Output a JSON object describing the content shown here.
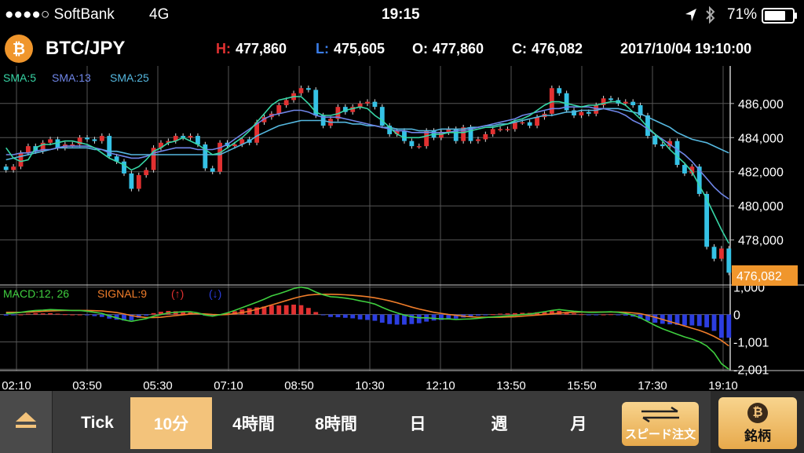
{
  "status_bar": {
    "carrier": "●●●●○ SoftBank",
    "network": "4G",
    "time": "19:15",
    "battery": "71%"
  },
  "header": {
    "logo_symbol": "₿",
    "pair": "BTC/JPY",
    "high_key": "H:",
    "high": "477,860",
    "low_key": "L:",
    "low": "475,605",
    "open_key": "O:",
    "open": "477,860",
    "close_key": "C:",
    "close": "476,082",
    "datetime": "2017/10/04 19:10:00"
  },
  "chart_data": {
    "type": "candlestick",
    "title": "BTC/JPY",
    "sma_labels": [
      "SMA:5",
      "SMA:13",
      "SMA:25"
    ],
    "macd_label": "MACD:12, 26",
    "signal_label": "SIGNAL:9",
    "up_arrow_label": "(↑)",
    "down_arrow_label": "(↓)",
    "price_ticks": [
      "486,000",
      "484,000",
      "482,000",
      "480,000",
      "478,000"
    ],
    "price_tick_values": [
      486000,
      484000,
      482000,
      480000,
      478000
    ],
    "price_range": [
      475500,
      488200
    ],
    "current_price_label": "476,082",
    "current_price": 476082,
    "macd_ticks": [
      "1,000",
      "0",
      "-1,001",
      "-2,001"
    ],
    "macd_tick_values": [
      1000,
      0,
      -1001,
      -2001
    ],
    "macd_range": [
      -2050,
      1050
    ],
    "x_labels": [
      "02:10",
      "03:50",
      "05:30",
      "07:10",
      "08:50",
      "10:30",
      "12:10",
      "13:50",
      "15:50",
      "17:30",
      "19:10"
    ],
    "closes": [
      482100,
      482300,
      483100,
      483500,
      483200,
      483700,
      483900,
      483400,
      483600,
      483600,
      484000,
      483900,
      483800,
      484100,
      482900,
      482600,
      481900,
      481000,
      481800,
      482100,
      483400,
      483700,
      483800,
      484100,
      484000,
      484100,
      483600,
      482200,
      482000,
      483700,
      483500,
      483600,
      483900,
      483700,
      484900,
      485200,
      485400,
      485900,
      486200,
      486600,
      486900,
      486800,
      485300,
      484700,
      485100,
      485800,
      485500,
      485800,
      486000,
      486100,
      485800,
      484700,
      484200,
      484400,
      483800,
      483500,
      483500,
      484400,
      484000,
      484300,
      484500,
      483800,
      484600,
      483800,
      483900,
      484200,
      484500,
      484500,
      484500,
      484900,
      484900,
      484700,
      485200,
      485400,
      486900,
      486600,
      485600,
      485300,
      485500,
      485400,
      485900,
      486300,
      486200,
      486000,
      486100,
      485900,
      485300,
      484100,
      483600,
      483500,
      483800,
      482400,
      481900,
      482300,
      480700,
      477600,
      476900,
      477500,
      476082
    ],
    "sma5": [
      483400,
      482800,
      482600,
      482700,
      483400,
      483600,
      483600,
      483700,
      483800,
      483800,
      483700,
      483600,
      483400,
      483100,
      482800,
      482600,
      482400,
      482100,
      482300,
      482700,
      483200,
      483400,
      483700,
      483800,
      484000,
      483800,
      483600,
      483300,
      483000,
      483100,
      483400,
      483700,
      484000,
      484400,
      484900,
      485400,
      485900,
      486200,
      486300,
      486400,
      486400,
      486000,
      485500,
      485300,
      485300,
      485400,
      485600,
      485700,
      485800,
      485700,
      485300,
      485000,
      484600,
      484200,
      484000,
      484000,
      484000,
      484100,
      484200,
      484200,
      484300,
      484300,
      484300,
      484400,
      484500,
      484600,
      484600,
      484700,
      484800,
      485000,
      485100,
      485300,
      485600,
      485900,
      486100,
      486100,
      486000,
      485900,
      485800,
      485900,
      485900,
      486000,
      486100,
      486100,
      485900,
      485500,
      485100,
      484600,
      484200,
      483800,
      483300,
      482900,
      482500,
      482000,
      481200,
      480400,
      479500,
      478600,
      477800
    ],
    "sma13": [
      483000,
      483000,
      483100,
      483100,
      483200,
      483300,
      483300,
      483400,
      483500,
      483500,
      483500,
      483500,
      483400,
      483300,
      483100,
      483000,
      482900,
      482800,
      482800,
      482900,
      483100,
      483200,
      483300,
      483400,
      483400,
      483400,
      483300,
      483300,
      483300,
      483400,
      483600,
      483900,
      484200,
      484500,
      484800,
      485100,
      485300,
      485400,
      485500,
      485600,
      485600,
      485500,
      485300,
      485200,
      485200,
      485200,
      485100,
      485000,
      484900,
      484800,
      484700,
      484600,
      484500,
      484400,
      484400,
      484300,
      484300,
      484300,
      484300,
      484300,
      484300,
      484400,
      484400,
      484500,
      484600,
      484700,
      484800,
      484900,
      485000,
      485100,
      485300,
      485400,
      485500,
      485600,
      485700,
      485700,
      485800,
      485800,
      485800,
      485800,
      485700,
      485700,
      485600,
      485500,
      485300,
      485000,
      484800,
      484500,
      484200,
      483900,
      483600,
      483300,
      483000,
      482600,
      482100,
      481600,
      481100,
      480700,
      480400
    ],
    "sma25": [
      482700,
      482800,
      482900,
      483000,
      483100,
      483200,
      483300,
      483400,
      483400,
      483400,
      483400,
      483400,
      483300,
      483300,
      483200,
      483200,
      483100,
      483000,
      483000,
      483000,
      483000,
      483000,
      483000,
      483000,
      483000,
      483000,
      483000,
      483000,
      483000,
      483000,
      483200,
      483400,
      483600,
      483800,
      484100,
      484300,
      484500,
      484700,
      484800,
      484900,
      485000,
      485000,
      485000,
      485000,
      484900,
      484900,
      484900,
      484800,
      484800,
      484700,
      484700,
      484600,
      484600,
      484500,
      484500,
      484500,
      484400,
      484400,
      484400,
      484500,
      484500,
      484500,
      484500,
      484600,
      484600,
      484700,
      484700,
      484800,
      484800,
      484900,
      485000,
      485100,
      485200,
      485300,
      485300,
      485400,
      485500,
      485500,
      485600,
      485600,
      485600,
      485700,
      485700,
      485700,
      485600,
      485500,
      485400,
      485200,
      485000,
      484800,
      484600,
      484300,
      484100,
      483900,
      483800,
      483700,
      483500,
      483300,
      483100
    ],
    "macd": [
      40,
      50,
      80,
      120,
      150,
      160,
      180,
      170,
      160,
      150,
      150,
      120,
      80,
      40,
      -50,
      -120,
      -200,
      -250,
      -200,
      -150,
      -60,
      0,
      60,
      80,
      100,
      100,
      60,
      -20,
      -60,
      -10,
      60,
      150,
      250,
      350,
      450,
      560,
      680,
      760,
      850,
      950,
      1000,
      950,
      820,
      720,
      650,
      630,
      600,
      560,
      500,
      450,
      380,
      260,
      150,
      60,
      -20,
      -80,
      -120,
      -120,
      -140,
      -160,
      -160,
      -180,
      -170,
      -160,
      -140,
      -110,
      -90,
      -70,
      -50,
      -30,
      0,
      20,
      60,
      100,
      150,
      180,
      150,
      120,
      100,
      80,
      80,
      90,
      100,
      80,
      40,
      -20,
      -120,
      -260,
      -400,
      -520,
      -620,
      -720,
      -820,
      -900,
      -1000,
      -1150,
      -1400,
      -1800,
      -2000
    ],
    "signal": [
      80,
      80,
      80,
      90,
      100,
      120,
      130,
      140,
      150,
      150,
      150,
      150,
      140,
      130,
      100,
      70,
      20,
      -40,
      -80,
      -110,
      -110,
      -100,
      -70,
      -40,
      -10,
      20,
      30,
      20,
      0,
      -10,
      0,
      30,
      70,
      120,
      190,
      270,
      350,
      430,
      510,
      590,
      660,
      710,
      730,
      740,
      740,
      730,
      720,
      700,
      680,
      650,
      610,
      560,
      500,
      430,
      350,
      270,
      200,
      140,
      80,
      40,
      0,
      -30,
      -60,
      -80,
      -100,
      -100,
      -100,
      -100,
      -90,
      -80,
      -60,
      -40,
      -20,
      0,
      20,
      50,
      70,
      80,
      90,
      90,
      90,
      90,
      90,
      90,
      80,
      60,
      30,
      -30,
      -100,
      -180,
      -260,
      -340,
      -420,
      -500,
      -580,
      -680,
      -800,
      -950,
      -1150
    ],
    "legend_colors": {
      "sma5": "#37d6a6",
      "sma13": "#6f86e8",
      "sma25": "#55b8e0",
      "macd": "#3fce3f",
      "signal": "#f07d2a"
    },
    "candle_colors": {
      "up": "#e23131",
      "down": "#35c2e6"
    },
    "hist_colors": {
      "positive": "#e23131",
      "negative": "#2c3ee0"
    },
    "grid": true
  },
  "toolbar": {
    "tick": "Tick",
    "m10": "10分",
    "h4": "4時間",
    "h8": "8時間",
    "day": "日",
    "week": "週",
    "month": "月",
    "speed_order": "スピード注文",
    "brand_symbol": "₿",
    "brand": "銘柄"
  },
  "colors": {
    "accent": "#f3c37b",
    "bitcoin": "#f0962c",
    "current_price_bg": "#f0962c",
    "high_label": "#e23131",
    "low_label": "#3a7de8"
  }
}
